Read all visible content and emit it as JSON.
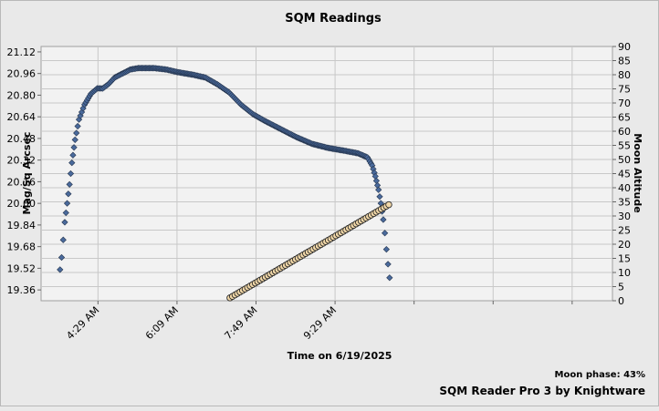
{
  "chart_data": {
    "type": "scatter",
    "title": "SQM Readings",
    "xlabel": "Time on 6/19/2025",
    "ylabel": "Mag/Sq Arcsec",
    "y2label": "Moon Altitude",
    "x_ticks": [
      "4:29 AM",
      "6:09 AM",
      "7:49 AM",
      "9:29 AM"
    ],
    "x_tick_minutes": [
      269,
      369,
      469,
      569
    ],
    "xlim_minutes": [
      197,
      920
    ],
    "ylim": [
      19.28,
      21.16
    ],
    "y_ticks": [
      21.12,
      20.96,
      20.8,
      20.64,
      20.48,
      20.32,
      20.16,
      20.0,
      19.84,
      19.68,
      19.52,
      19.36
    ],
    "y2lim": [
      0,
      90
    ],
    "y2_ticks": [
      0,
      5,
      10,
      15,
      20,
      25,
      30,
      35,
      40,
      45,
      50,
      55,
      60,
      65,
      70,
      75,
      80,
      85,
      90
    ],
    "grid": true,
    "series": [
      {
        "axis": "left",
        "marker": "diamond",
        "color": "#4a6a9c",
        "keypoints": [
          [
            221,
            19.51
          ],
          [
            223,
            19.6
          ],
          [
            225,
            19.73
          ],
          [
            227,
            19.86
          ],
          [
            230,
            20.0
          ],
          [
            233,
            20.14
          ],
          [
            236,
            20.3
          ],
          [
            240,
            20.47
          ],
          [
            245,
            20.62
          ],
          [
            252,
            20.73
          ],
          [
            260,
            20.81
          ],
          [
            268,
            20.85
          ],
          [
            275,
            20.85
          ],
          [
            282,
            20.88
          ],
          [
            290,
            20.93
          ],
          [
            300,
            20.96
          ],
          [
            310,
            20.99
          ],
          [
            320,
            21.0
          ],
          [
            340,
            21.0
          ],
          [
            355,
            20.99
          ],
          [
            370,
            20.97
          ],
          [
            390,
            20.95
          ],
          [
            405,
            20.93
          ],
          [
            420,
            20.88
          ],
          [
            435,
            20.82
          ],
          [
            450,
            20.73
          ],
          [
            465,
            20.66
          ],
          [
            480,
            20.61
          ],
          [
            500,
            20.55
          ],
          [
            520,
            20.49
          ],
          [
            540,
            20.44
          ],
          [
            560,
            20.41
          ],
          [
            580,
            20.39
          ],
          [
            598,
            20.37
          ],
          [
            610,
            20.34
          ],
          [
            616,
            20.28
          ],
          [
            620,
            20.2
          ],
          [
            624,
            20.1
          ],
          [
            627,
            20.0
          ],
          [
            630,
            19.88
          ],
          [
            632,
            19.78
          ],
          [
            634,
            19.66
          ],
          [
            636,
            19.55
          ],
          [
            638,
            19.45
          ]
        ]
      },
      {
        "axis": "right",
        "marker": "circle",
        "color": "#f2d8a8",
        "keypoints": [
          [
            436,
            1.0
          ],
          [
            637,
            34.0
          ]
        ]
      }
    ],
    "annotations": [
      "Moon phase: 43%",
      "SQM Reader Pro 3 by Knightware"
    ]
  },
  "colors": {
    "background": "#e9e9e9",
    "plot_area": "#f2f2f2",
    "grid": "#c8c8c8",
    "sqm_marker": "#4a6a9c",
    "moon_marker": "#f2d8a8"
  }
}
